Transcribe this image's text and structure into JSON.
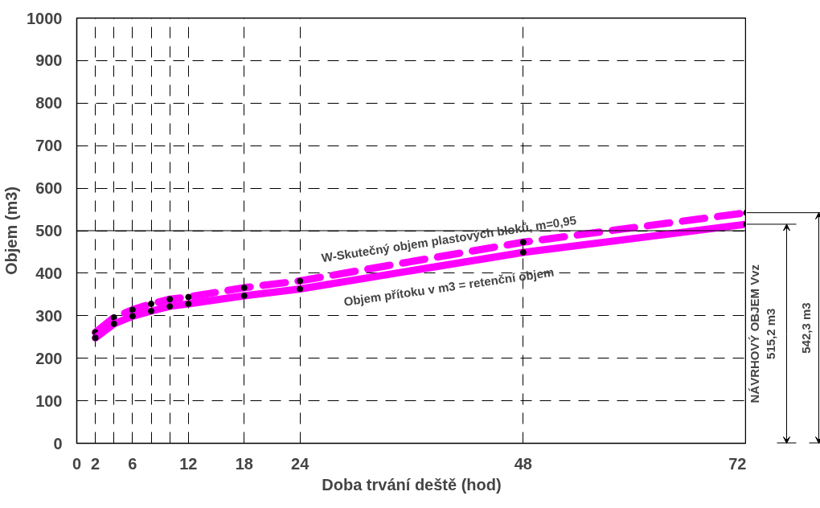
{
  "chart_data": {
    "type": "line",
    "xlabel": "Doba trvání deště (hod)",
    "ylabel": "Objem (m3)",
    "x": [
      2,
      4,
      6,
      8,
      10,
      12,
      18,
      24,
      48,
      72
    ],
    "series": [
      {
        "name": "W-Skutečný objem plastových bloků, m=0,95",
        "color": "#ff00ff",
        "line_style": "dashed",
        "values": [
          261,
          296,
          314,
          328,
          339,
          344,
          366,
          382,
          473,
          542.3
        ]
      },
      {
        "name": "Objem přítoku v m3 = retenční objem",
        "color": "#ff00ff",
        "line_style": "solid",
        "values": [
          248,
          281,
          299,
          311,
          322,
          328,
          347,
          363,
          449,
          515.2
        ]
      }
    ],
    "xlim": [
      0,
      72
    ],
    "ylim": [
      0,
      1000
    ],
    "xticks": [
      0,
      2,
      {
        "value": 4,
        "label": null
      },
      6,
      {
        "value": 8,
        "label": null
      },
      {
        "value": 10,
        "label": null
      },
      12,
      18,
      24,
      48,
      72
    ],
    "yticks": [
      0,
      100,
      200,
      300,
      400,
      500,
      600,
      700,
      800,
      900,
      1000
    ],
    "grid": true,
    "marker": "circle",
    "legend": false,
    "ref_lines": [
      {
        "axis": "y",
        "value": 500,
        "color": "#000000",
        "line_style": "solid"
      }
    ],
    "annotations": [
      "NÁVRHOVÝ OBJEM Vvz",
      "515,2 m3",
      "542,3 m3"
    ]
  }
}
